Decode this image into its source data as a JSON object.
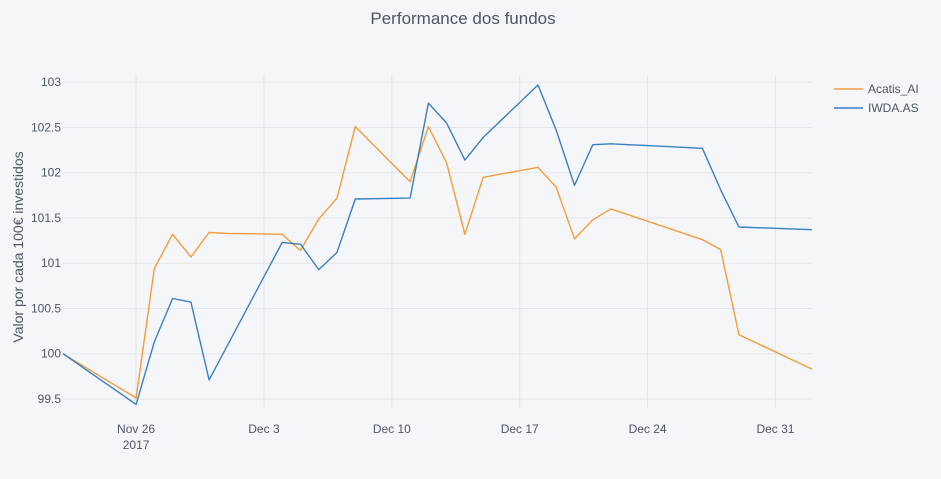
{
  "chart_data": {
    "type": "line",
    "title": "Performance dos fundos",
    "xlabel": "",
    "ylabel": "Valor por cada 100€ investidos",
    "xlim": [
      "2017-11-22",
      "2018-01-02"
    ],
    "ylim": [
      99.4,
      103.08
    ],
    "y_ticks": [
      99.5,
      100,
      100.5,
      101,
      101.5,
      102,
      102.5,
      103
    ],
    "y_tick_labels": [
      "99.5",
      "100",
      "100.5",
      "101",
      "101.5",
      "102",
      "102.5",
      "103"
    ],
    "x_ticks": [
      "2017-11-26",
      "2017-12-03",
      "2017-12-10",
      "2017-12-17",
      "2017-12-24",
      "2017-12-31"
    ],
    "x_tick_labels": [
      "Nov 26",
      "Dec 3",
      "Dec 10",
      "Dec 17",
      "Dec 24",
      "Dec 31"
    ],
    "x_tick_sublabel": "2017",
    "grid": true,
    "legend_position": "top-right",
    "series": [
      {
        "name": "Acatis_AI",
        "color": "#f39c3d",
        "x": [
          "2017-11-22",
          "2017-11-26",
          "2017-11-27",
          "2017-11-28",
          "2017-11-29",
          "2017-11-30",
          "2017-12-01",
          "2017-12-04",
          "2017-12-05",
          "2017-12-06",
          "2017-12-07",
          "2017-12-08",
          "2017-12-11",
          "2017-12-12",
          "2017-12-13",
          "2017-12-14",
          "2017-12-15",
          "2017-12-18",
          "2017-12-19",
          "2017-12-20",
          "2017-12-21",
          "2017-12-22",
          "2017-12-27",
          "2017-12-28",
          "2017-12-29",
          "2018-01-02"
        ],
        "values": [
          100.0,
          99.51,
          100.94,
          101.32,
          101.07,
          101.34,
          101.33,
          101.32,
          101.14,
          101.49,
          101.72,
          102.51,
          101.9,
          102.51,
          102.11,
          101.32,
          101.95,
          102.06,
          101.84,
          101.27,
          101.48,
          101.6,
          101.26,
          101.15,
          100.21,
          99.83
        ]
      },
      {
        "name": "IWDA.AS",
        "color": "#3a7fbf",
        "x": [
          "2017-11-22",
          "2017-11-26",
          "2017-11-27",
          "2017-11-28",
          "2017-11-29",
          "2017-11-30",
          "2017-12-04",
          "2017-12-05",
          "2017-12-06",
          "2017-12-07",
          "2017-12-08",
          "2017-12-11",
          "2017-12-12",
          "2017-12-13",
          "2017-12-14",
          "2017-12-15",
          "2017-12-18",
          "2017-12-19",
          "2017-12-20",
          "2017-12-21",
          "2017-12-22",
          "2017-12-27",
          "2017-12-28",
          "2017-12-29",
          "2018-01-02"
        ],
        "values": [
          100.0,
          99.44,
          100.13,
          100.61,
          100.57,
          99.71,
          101.23,
          101.21,
          100.93,
          101.12,
          101.71,
          101.72,
          102.77,
          102.55,
          102.14,
          102.39,
          102.97,
          102.47,
          101.86,
          102.31,
          102.32,
          102.27,
          101.81,
          101.4,
          101.37
        ]
      }
    ]
  }
}
